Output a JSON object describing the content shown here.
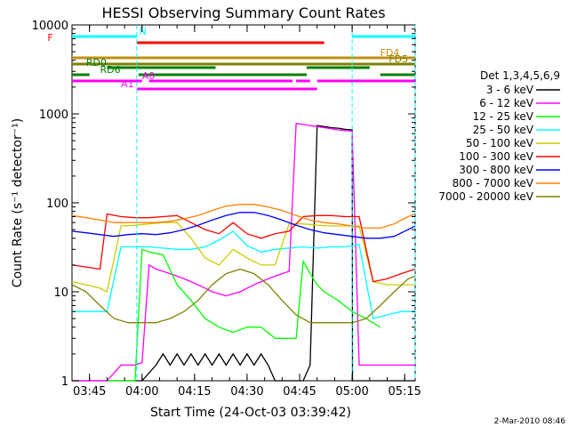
{
  "chart_data": {
    "type": "line",
    "title": "HESSI Observing Summary Count Rates",
    "xlabel": "Start Time (24-Oct-03 03:39:42)",
    "ylabel": "Count Rate (s⁻¹ detector⁻¹)",
    "yscale": "log",
    "ylim": [
      1,
      10000
    ],
    "xlim_minutes_after_0340": [
      0,
      98
    ],
    "x_ticks": [
      "03:45",
      "04:00",
      "04:15",
      "04:30",
      "04:45",
      "05:00",
      "05:15"
    ],
    "y_ticks": [
      "1",
      "10",
      "100",
      "1000",
      "10000"
    ],
    "legend_title": "Det 1,3,4,5,6,9",
    "legend_position": "right",
    "footer": "2-Mar-2010 08:46",
    "series": [
      {
        "name": "3 - 6 keV",
        "color": "#000000",
        "x": [
          0,
          10,
          20,
          24,
          26,
          28,
          30,
          32,
          34,
          36,
          38,
          40,
          42,
          44,
          46,
          48,
          50,
          52,
          54,
          56,
          58,
          60,
          62,
          64,
          66,
          68,
          70,
          72,
          74,
          76,
          78,
          80,
          80.1,
          88,
          90,
          98
        ],
        "values": [
          1,
          1,
          1,
          1.5,
          2,
          1.5,
          2,
          1.5,
          2,
          1.5,
          2,
          1.5,
          2,
          1.5,
          2,
          1.5,
          2,
          1.5,
          2,
          1.5,
          1,
          1,
          1,
          1,
          1,
          1.5,
          740,
          720,
          700,
          690,
          670,
          660,
          1,
          1,
          1,
          1
        ]
      },
      {
        "name": "6 - 12 keV",
        "color": "#ff00ff",
        "x": [
          0,
          10,
          14,
          18,
          20,
          22,
          24,
          26,
          28,
          30,
          32,
          34,
          36,
          38,
          40,
          42,
          44,
          46,
          48,
          50,
          52,
          54,
          56,
          58,
          60,
          62,
          64,
          66,
          68,
          70,
          72,
          74,
          76,
          78,
          80,
          82,
          84,
          86,
          88,
          90,
          94,
          98
        ],
        "values": [
          1,
          1,
          1.5,
          1.5,
          1.6,
          20,
          18,
          17,
          16,
          15,
          14,
          13,
          12,
          11,
          10,
          9.5,
          9,
          9.5,
          10,
          11,
          12,
          13,
          14,
          15,
          16,
          17,
          780,
          760,
          740,
          720,
          700,
          680,
          660,
          650,
          640,
          1.5,
          1.5,
          1.5,
          1.5,
          1.5,
          1.5,
          1.5
        ]
      },
      {
        "name": "12 - 25 keV",
        "color": "#00ff00",
        "x": [
          10,
          18,
          20,
          22,
          26,
          30,
          34,
          38,
          42,
          46,
          50,
          54,
          58,
          60,
          62,
          64,
          66,
          68,
          70,
          72,
          76,
          80,
          84,
          88
        ],
        "values": [
          1,
          1,
          30,
          28,
          26,
          12,
          8,
          5,
          4,
          3.5,
          4,
          4,
          3,
          3,
          3,
          3,
          22,
          16,
          12,
          10,
          8,
          6,
          5,
          4
        ]
      },
      {
        "name": "25 - 50 keV",
        "color": "#00ffff",
        "x": [
          0,
          10,
          14,
          18,
          22,
          26,
          30,
          34,
          38,
          42,
          46,
          50,
          54,
          58,
          62,
          66,
          70,
          74,
          78,
          82,
          86,
          90,
          94,
          98
        ],
        "values": [
          6,
          6,
          32,
          32,
          32,
          31,
          30,
          30,
          32,
          38,
          48,
          33,
          28,
          30,
          31,
          32,
          31,
          32,
          32,
          34,
          5,
          5.5,
          6,
          6
        ]
      },
      {
        "name": "50 - 100 keV",
        "color": "#cccc00",
        "x": [
          0,
          4,
          8,
          10,
          14,
          18,
          22,
          26,
          30,
          34,
          38,
          42,
          46,
          50,
          54,
          58,
          62,
          66,
          70,
          74,
          78,
          82,
          86,
          90,
          94,
          98
        ],
        "values": [
          13,
          12,
          11,
          10,
          55,
          56,
          58,
          60,
          60,
          40,
          24,
          20,
          30,
          24,
          20,
          20,
          58,
          58,
          56,
          55,
          55,
          55,
          13,
          12,
          12,
          12
        ]
      },
      {
        "name": "100 - 300 keV",
        "color": "#ff0000",
        "x": [
          0,
          4,
          8,
          10,
          14,
          18,
          22,
          26,
          30,
          34,
          38,
          42,
          46,
          50,
          54,
          58,
          62,
          66,
          70,
          74,
          78,
          82,
          86,
          90,
          94,
          98
        ],
        "values": [
          20,
          19,
          18,
          75,
          70,
          68,
          68,
          70,
          72,
          60,
          50,
          45,
          60,
          45,
          40,
          45,
          48,
          70,
          72,
          72,
          70,
          70,
          13,
          14,
          16,
          18
        ]
      },
      {
        "name": "300 - 800 keV",
        "color": "#0000ff",
        "x": [
          0,
          4,
          8,
          12,
          16,
          20,
          24,
          28,
          32,
          36,
          40,
          44,
          48,
          52,
          56,
          60,
          64,
          68,
          72,
          76,
          80,
          84,
          88,
          92,
          96,
          98
        ],
        "values": [
          48,
          46,
          44,
          42,
          44,
          45,
          44,
          46,
          50,
          56,
          64,
          72,
          78,
          78,
          72,
          64,
          56,
          50,
          46,
          44,
          42,
          40,
          40,
          42,
          50,
          55
        ]
      },
      {
        "name": "800 - 7000 keV",
        "color": "#ff8000",
        "x": [
          0,
          4,
          8,
          12,
          16,
          20,
          24,
          28,
          32,
          36,
          40,
          44,
          48,
          52,
          56,
          60,
          64,
          68,
          72,
          76,
          80,
          84,
          88,
          92,
          96,
          98
        ],
        "values": [
          72,
          68,
          64,
          60,
          60,
          60,
          60,
          62,
          66,
          72,
          82,
          92,
          96,
          96,
          90,
          82,
          72,
          64,
          60,
          58,
          55,
          52,
          52,
          58,
          70,
          75
        ]
      },
      {
        "name": "7000 - 20000 keV",
        "color": "#808000",
        "x": [
          0,
          4,
          8,
          12,
          16,
          20,
          24,
          28,
          32,
          36,
          40,
          44,
          48,
          52,
          56,
          60,
          64,
          68,
          72,
          76,
          80,
          84,
          88,
          92,
          96,
          98
        ],
        "values": [
          12,
          10,
          7,
          5,
          4.5,
          4.5,
          4.5,
          5,
          6,
          8,
          12,
          16,
          18,
          16,
          12,
          8,
          5.5,
          4.5,
          4.5,
          4.5,
          4.5,
          5,
          7,
          10,
          14,
          15
        ]
      }
    ],
    "flags": [
      {
        "label": "N",
        "color": "#00ffff",
        "segments": [
          [
            0,
            18.5
          ],
          [
            80,
            98
          ]
        ]
      },
      {
        "label": "F",
        "color": "#ff0000",
        "segments": [
          [
            18.5,
            72
          ]
        ]
      },
      {
        "label": "FD4",
        "color": "#c09010",
        "segments": [
          [
            0,
            98
          ]
        ]
      },
      {
        "label": "FD5",
        "color": "#808000",
        "segments": [
          [
            0,
            98
          ]
        ]
      },
      {
        "label": "RD0",
        "color": "#008000",
        "segments": [
          [
            10,
            41
          ],
          [
            67,
            85
          ]
        ]
      },
      {
        "label": "RD6",
        "color": "#008000",
        "segments": [
          [
            0,
            5
          ],
          [
            19,
            41
          ],
          [
            41,
            67
          ],
          [
            88,
            98
          ]
        ]
      },
      {
        "label": "A0",
        "color": "#ff00ff",
        "segments": [
          [
            0,
            20
          ],
          [
            22,
            63
          ],
          [
            64,
            68
          ],
          [
            70,
            98
          ]
        ]
      },
      {
        "label": "A1",
        "color": "#ff00ff",
        "segments": [
          [
            18.5,
            70
          ]
        ]
      }
    ],
    "vertical_markers_minutes": [
      18.5,
      80,
      98
    ]
  }
}
